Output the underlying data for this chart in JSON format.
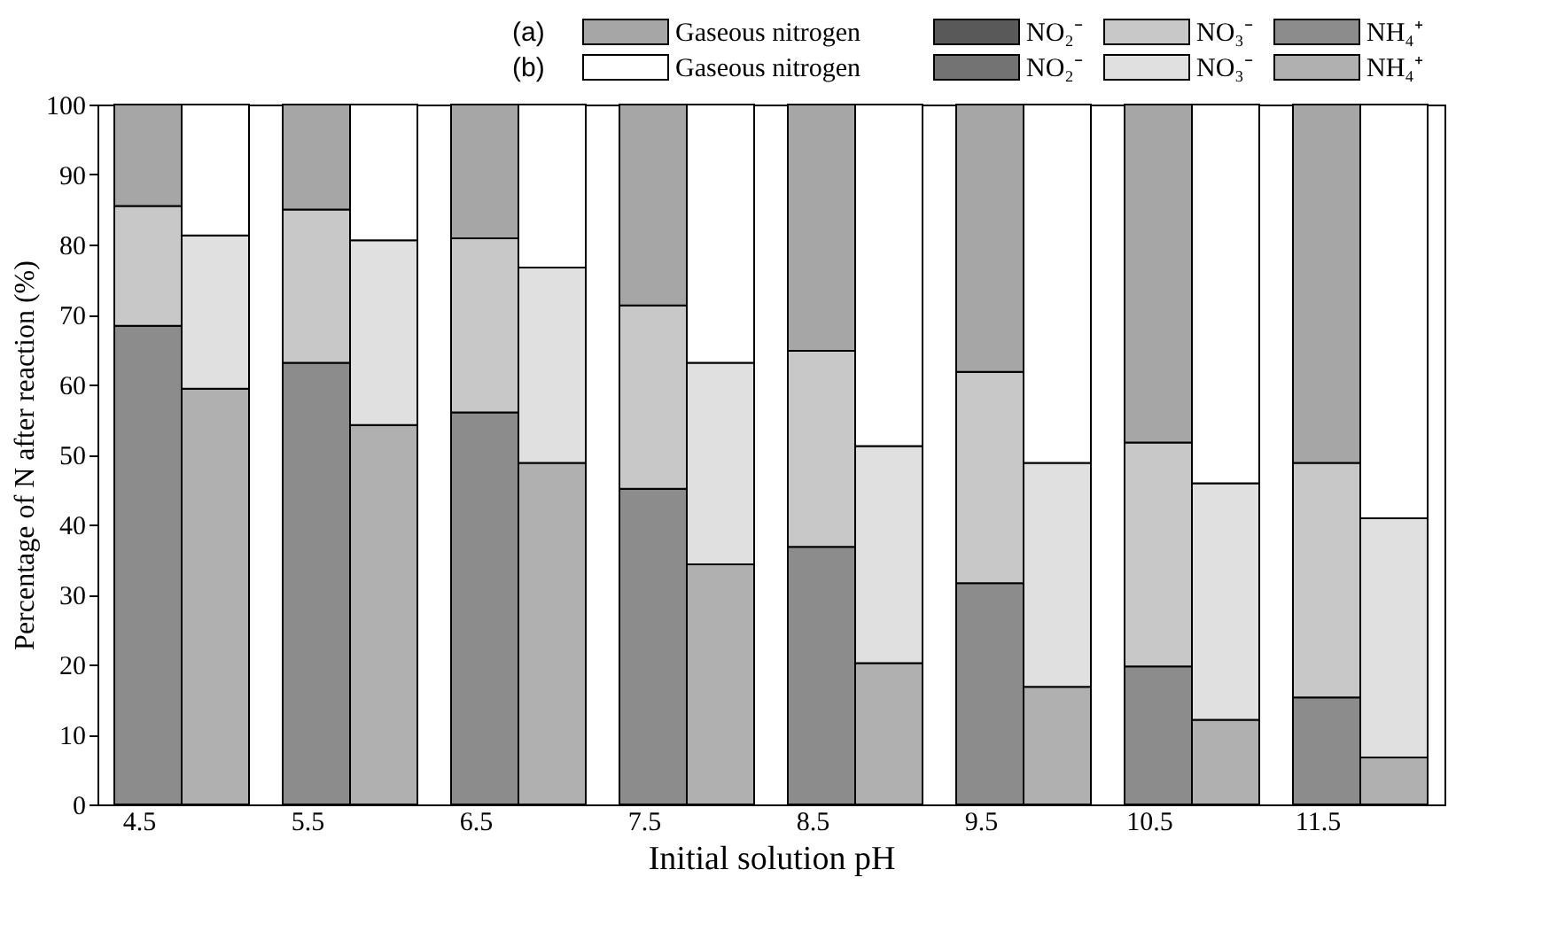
{
  "chart_data": {
    "type": "bar",
    "stacked": true,
    "xlabel": "Initial solution pH",
    "ylabel": "Percentage of N after reaction (%)",
    "categories": [
      "4.5",
      null,
      "5.5",
      null,
      "6.5",
      null,
      "7.5",
      null,
      "8.5",
      null,
      "9.5",
      null,
      "10.5",
      null,
      "11.5",
      null
    ],
    "annotations": [
      "(a)",
      "(b)"
    ],
    "series": [
      {
        "name": "NH₄⁺",
        "color": "#8c8c8c",
        "values": [
          68.4,
          null,
          63.1,
          null,
          56.0,
          null,
          45.1,
          null,
          36.8,
          null,
          31.6,
          null,
          19.7,
          null,
          15.3,
          null
        ]
      },
      {
        "name": "NO₃⁻",
        "color": "#c8c8c8",
        "values": [
          17.1,
          null,
          21.9,
          null,
          24.9,
          null,
          26.2,
          null,
          28.0,
          null,
          30.2,
          null,
          32.0,
          null,
          33.5,
          null
        ]
      },
      {
        "name": "NO₂⁻",
        "color": "#595959",
        "values": [
          0,
          null,
          0,
          null,
          0,
          null,
          0,
          null,
          0,
          null,
          0,
          null,
          0,
          null,
          0,
          null
        ]
      },
      {
        "name": "Gaseous nitrogen",
        "color": "#a6a6a6",
        "values": [
          14.5,
          null,
          15.0,
          null,
          19.1,
          null,
          28.7,
          null,
          35.2,
          null,
          38.2,
          null,
          48.3,
          null,
          51.2,
          null
        ]
      },
      {
        "name": "NH₄⁺",
        "color": "#b0b0b0",
        "values": [
          null,
          59.4,
          null,
          54.2,
          null,
          48.8,
          null,
          34.3,
          null,
          20.2,
          null,
          16.8,
          null,
          12.1,
          null,
          6.7
        ]
      },
      {
        "name": "NO₃⁻",
        "color": "#e0e0e0",
        "values": [
          null,
          21.9,
          null,
          26.4,
          null,
          27.9,
          null,
          28.8,
          null,
          31.0,
          null,
          32.0,
          null,
          33.8,
          null,
          34.2
        ]
      },
      {
        "name": "NO₂⁻",
        "color": "#737373",
        "values": [
          null,
          0,
          null,
          0,
          null,
          0,
          null,
          0,
          null,
          0,
          null,
          0,
          null,
          0,
          null,
          0
        ]
      },
      {
        "name": "Gaseous nitrogen",
        "color": "#ffffff",
        "values": [
          null,
          18.7,
          null,
          19.4,
          null,
          23.3,
          null,
          36.9,
          null,
          48.8,
          null,
          51.2,
          null,
          54.1,
          null,
          59.1
        ]
      }
    ],
    "ylim": [
      0,
      100
    ],
    "yticks": [
      0,
      10,
      20,
      30,
      40,
      50,
      60,
      70,
      80,
      90,
      100
    ],
    "grid": false,
    "legend": "top"
  }
}
